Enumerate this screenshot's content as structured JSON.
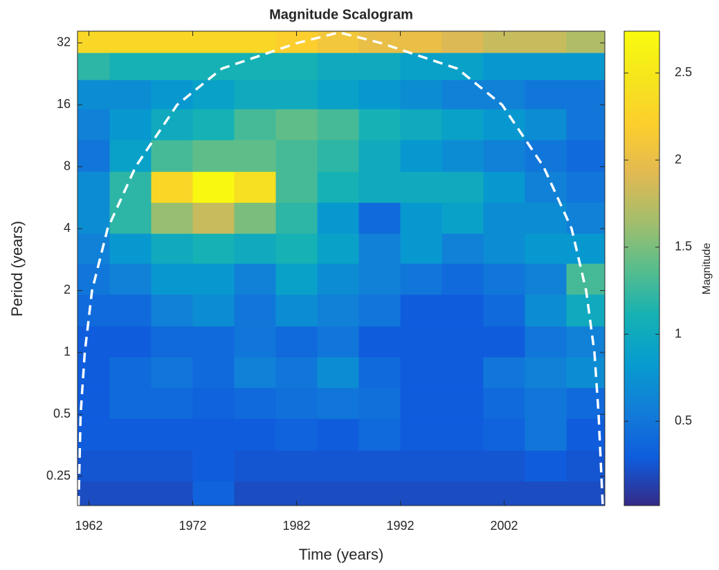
{
  "chart_data": {
    "type": "heatmap",
    "title": "Magnitude Scalogram",
    "x_label": "Time (years)",
    "y_label": "Period (years)",
    "colorbar_label": "Magnitude",
    "colormap": "parula",
    "log_y": true,
    "x": [
      1962,
      1966,
      1970,
      1974,
      1978,
      1982,
      1986,
      1990,
      1994,
      1998,
      2002,
      2006,
      2010
    ],
    "periods": [
      0.2,
      0.28,
      0.4,
      0.57,
      0.8,
      1.13,
      1.6,
      2.3,
      3.2,
      4.5,
      6.4,
      9,
      13,
      18,
      25,
      33
    ],
    "values": [
      [
        0.2,
        0.2,
        0.2,
        0.35,
        0.2,
        0.2,
        0.2,
        0.2,
        0.2,
        0.2,
        0.2,
        0.2,
        0.2
      ],
      [
        0.25,
        0.25,
        0.25,
        0.3,
        0.25,
        0.25,
        0.25,
        0.25,
        0.25,
        0.25,
        0.25,
        0.3,
        0.25
      ],
      [
        0.3,
        0.3,
        0.3,
        0.3,
        0.3,
        0.35,
        0.3,
        0.4,
        0.3,
        0.3,
        0.35,
        0.5,
        0.3
      ],
      [
        0.3,
        0.4,
        0.4,
        0.35,
        0.4,
        0.45,
        0.5,
        0.45,
        0.3,
        0.3,
        0.4,
        0.5,
        0.4
      ],
      [
        0.3,
        0.4,
        0.5,
        0.4,
        0.6,
        0.5,
        0.7,
        0.4,
        0.3,
        0.3,
        0.5,
        0.6,
        0.7
      ],
      [
        0.3,
        0.3,
        0.4,
        0.4,
        0.5,
        0.4,
        0.5,
        0.3,
        0.3,
        0.3,
        0.3,
        0.5,
        0.6
      ],
      [
        0.4,
        0.4,
        0.6,
        0.7,
        0.5,
        0.7,
        0.6,
        0.5,
        0.3,
        0.3,
        0.4,
        0.7,
        1.0
      ],
      [
        0.5,
        0.6,
        0.8,
        0.8,
        0.6,
        0.9,
        0.7,
        0.6,
        0.5,
        0.4,
        0.5,
        0.6,
        1.3
      ],
      [
        0.6,
        0.8,
        1.0,
        1.1,
        1.0,
        1.1,
        0.9,
        0.6,
        0.8,
        0.6,
        0.7,
        0.8,
        0.8
      ],
      [
        0.7,
        1.2,
        1.6,
        1.8,
        1.5,
        1.2,
        0.8,
        0.4,
        0.8,
        0.9,
        0.7,
        0.7,
        0.6
      ],
      [
        0.7,
        1.2,
        2.3,
        2.7,
        2.4,
        1.3,
        1.1,
        1.0,
        1.0,
        1.0,
        0.8,
        0.6,
        0.5
      ],
      [
        0.5,
        0.9,
        1.3,
        1.4,
        1.4,
        1.3,
        1.2,
        1.0,
        0.8,
        0.7,
        0.6,
        0.5,
        0.4
      ],
      [
        0.6,
        0.8,
        1.0,
        1.1,
        1.3,
        1.4,
        1.3,
        1.1,
        1.0,
        0.9,
        0.8,
        0.7,
        0.5
      ],
      [
        0.7,
        0.7,
        0.8,
        0.9,
        1.0,
        1.0,
        0.9,
        0.8,
        0.7,
        0.6,
        0.6,
        0.5,
        0.5
      ],
      [
        1.2,
        1.1,
        1.1,
        1.1,
        1.1,
        1.1,
        1.0,
        1.0,
        0.9,
        0.9,
        0.8,
        0.8,
        0.8
      ],
      [
        2.3,
        2.3,
        2.3,
        2.3,
        2.3,
        2.2,
        2.1,
        2.0,
        2.0,
        1.9,
        1.8,
        1.8,
        1.7
      ]
    ],
    "coi": {
      "x": [
        1961.0,
        1961.2,
        1961.6,
        1962.3,
        1963.8,
        1966.5,
        1970.5,
        1974.8,
        1982.1,
        1986.1,
        1990.1,
        1997.5,
        2001.8,
        2005.8,
        2008.5,
        2009.9,
        2010.7,
        2011.1,
        2011.5
      ],
      "period": [
        0.18,
        0.5,
        1,
        2,
        4,
        8,
        16,
        24,
        32,
        36,
        32,
        24,
        16,
        8,
        4,
        2,
        1,
        0.5,
        0.18
      ],
      "color": "#ffffff"
    },
    "xlim": [
      1960.9,
      2011.7
    ],
    "xticks": [
      1962,
      1972,
      1982,
      1992,
      2002
    ],
    "ylim": [
      0.18,
      36.5
    ],
    "yticks": [
      0.25,
      0.5,
      1,
      2,
      4,
      8,
      16,
      32
    ],
    "clim": [
      0.016,
      2.74
    ],
    "cticks": [
      0.5,
      1,
      1.5,
      2,
      2.5
    ]
  }
}
